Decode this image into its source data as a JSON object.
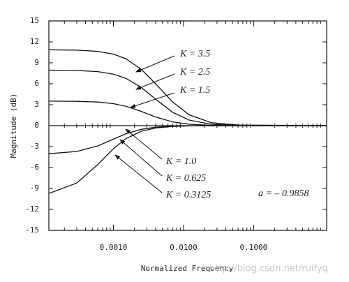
{
  "chart_data": {
    "type": "line",
    "xlabel": "Normalized Frequency",
    "ylabel": "Magnitude (dB)",
    "x": [
      0.00012,
      0.0003,
      0.0006,
      0.001,
      0.0015,
      0.0025,
      0.004,
      0.007,
      0.012,
      0.025,
      0.06,
      1.1
    ],
    "series": [
      {
        "name": "K = 3.5",
        "color": "#111111",
        "values": [
          10.87,
          10.82,
          10.64,
          10.25,
          9.59,
          8.06,
          6.0,
          3.39,
          1.56,
          0.42,
          0.08,
          0
        ]
      },
      {
        "name": "K = 2.5",
        "color": "#111111",
        "values": [
          7.95,
          7.9,
          7.74,
          7.38,
          6.79,
          5.47,
          3.78,
          1.91,
          0.8,
          0.2,
          0.04,
          0
        ]
      },
      {
        "name": "K = 1.5",
        "color": "#111111",
        "values": [
          3.51,
          3.48,
          3.38,
          3.15,
          2.79,
          2.04,
          1.24,
          0.54,
          0.2,
          0.05,
          0.01,
          0
        ]
      },
      {
        "name": "K = 1.0",
        "color": "#111111",
        "values": [
          0,
          0,
          0,
          0,
          0,
          0,
          0,
          0,
          0,
          0,
          0,
          0
        ]
      },
      {
        "name": "K = 0.625",
        "color": "#111111",
        "values": [
          -4.02,
          -3.7,
          -2.9,
          -1.94,
          -1.18,
          -0.53,
          -0.22,
          -0.08,
          -0.03,
          -0.01,
          0,
          0
        ]
      },
      {
        "name": "K = 0.3125",
        "color": "#111111",
        "values": [
          -9.72,
          -8.22,
          -5.56,
          -3.3,
          -1.88,
          -0.8,
          -0.34,
          -0.11,
          -0.04,
          -0.01,
          0,
          0
        ]
      }
    ],
    "annotation": "a = – 0.9858",
    "watermark": "http://blog.csdn.net/ruifyq",
    "xscale": "log",
    "xlim": [
      0.00012,
      1.1
    ],
    "xticks": [
      {
        "value": 0.001,
        "label": "0.0010"
      },
      {
        "value": 0.01,
        "label": "0.0100"
      },
      {
        "value": 0.1,
        "label": "0.1000"
      }
    ],
    "ylim": [
      -15,
      15
    ],
    "yticks": [
      -15,
      -12,
      -9,
      -6,
      -3,
      0,
      3,
      6,
      9,
      12,
      15
    ]
  }
}
